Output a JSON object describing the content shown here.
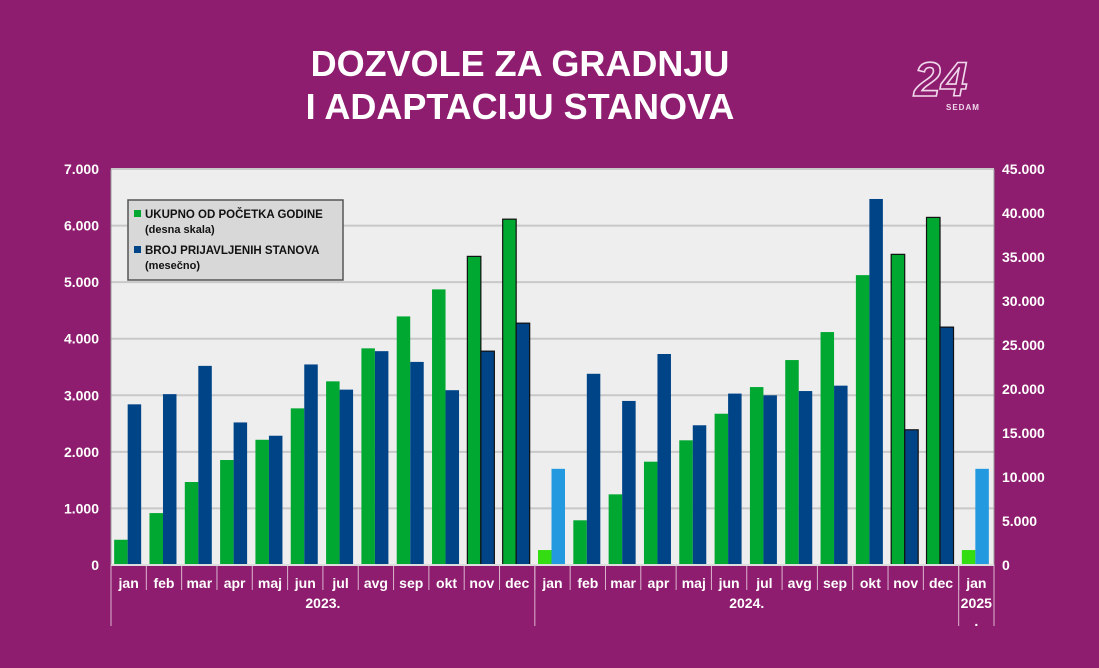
{
  "title": {
    "line1": "DOZVOLE ZA GRADNJU",
    "line2": "I ADAPTACIJU STANOVA"
  },
  "logo": {
    "text": "24 SEDAM"
  },
  "colors": {
    "background": "#8f1d6f",
    "plot_bg": "#eeeeee",
    "green": "#00a832",
    "blue": "#004488",
    "light_blue": "#2399e0",
    "light_green": "#33dd11"
  },
  "chart_data": {
    "type": "bar",
    "categories": [
      "jan",
      "feb",
      "mar",
      "apr",
      "maj",
      "jun",
      "jul",
      "avg",
      "sep",
      "okt",
      "nov",
      "dec",
      "jan",
      "feb",
      "mar",
      "apr",
      "maj",
      "jun",
      "jul",
      "avg",
      "sep",
      "okt",
      "nov",
      "dec",
      "jan"
    ],
    "groups": [
      {
        "label": "2023.",
        "span": 12
      },
      {
        "label": "2024.",
        "span": 12
      },
      {
        "label": "2025.",
        "span": 1
      }
    ],
    "left_axis": {
      "ylim": [
        0,
        7000
      ],
      "ticks": [
        "0",
        "1.000",
        "2.000",
        "3.000",
        "4.000",
        "5.000",
        "6.000",
        "7.000"
      ]
    },
    "right_axis": {
      "ylim": [
        0,
        45000
      ],
      "ticks": [
        "0",
        "5.000",
        "10.000",
        "15.000",
        "20.000",
        "25.000",
        "30.000",
        "35.000",
        "40.000",
        "45.000"
      ]
    },
    "grid": true,
    "legend_placement": "top-left",
    "series": [
      {
        "name": "UKUPNO OD POČETKA GODINE",
        "name_sub": "(desna skala)",
        "axis": "right",
        "values": [
          2870,
          5900,
          9430,
          11930,
          14230,
          17800,
          20870,
          24620,
          28250,
          31320,
          35070,
          39300,
          1700,
          5080,
          8030,
          11740,
          14170,
          17190,
          20220,
          23290,
          26470,
          32940,
          35300,
          39500,
          1700
        ]
      },
      {
        "name": "BROJ PRIJAVLJENIH STANOVA",
        "name_sub": "(mesečno)",
        "axis": "left",
        "values": [
          2840,
          3020,
          3520,
          2520,
          2285,
          3545,
          3100,
          3780,
          3590,
          3090,
          3780,
          4275,
          1700,
          3380,
          2900,
          3730,
          2470,
          3030,
          3000,
          3075,
          3170,
          6470,
          2390,
          4205,
          1700
        ]
      }
    ],
    "highlighted_outline": [
      10,
      11,
      22,
      23
    ],
    "light_color_indices": [
      12,
      24
    ]
  }
}
